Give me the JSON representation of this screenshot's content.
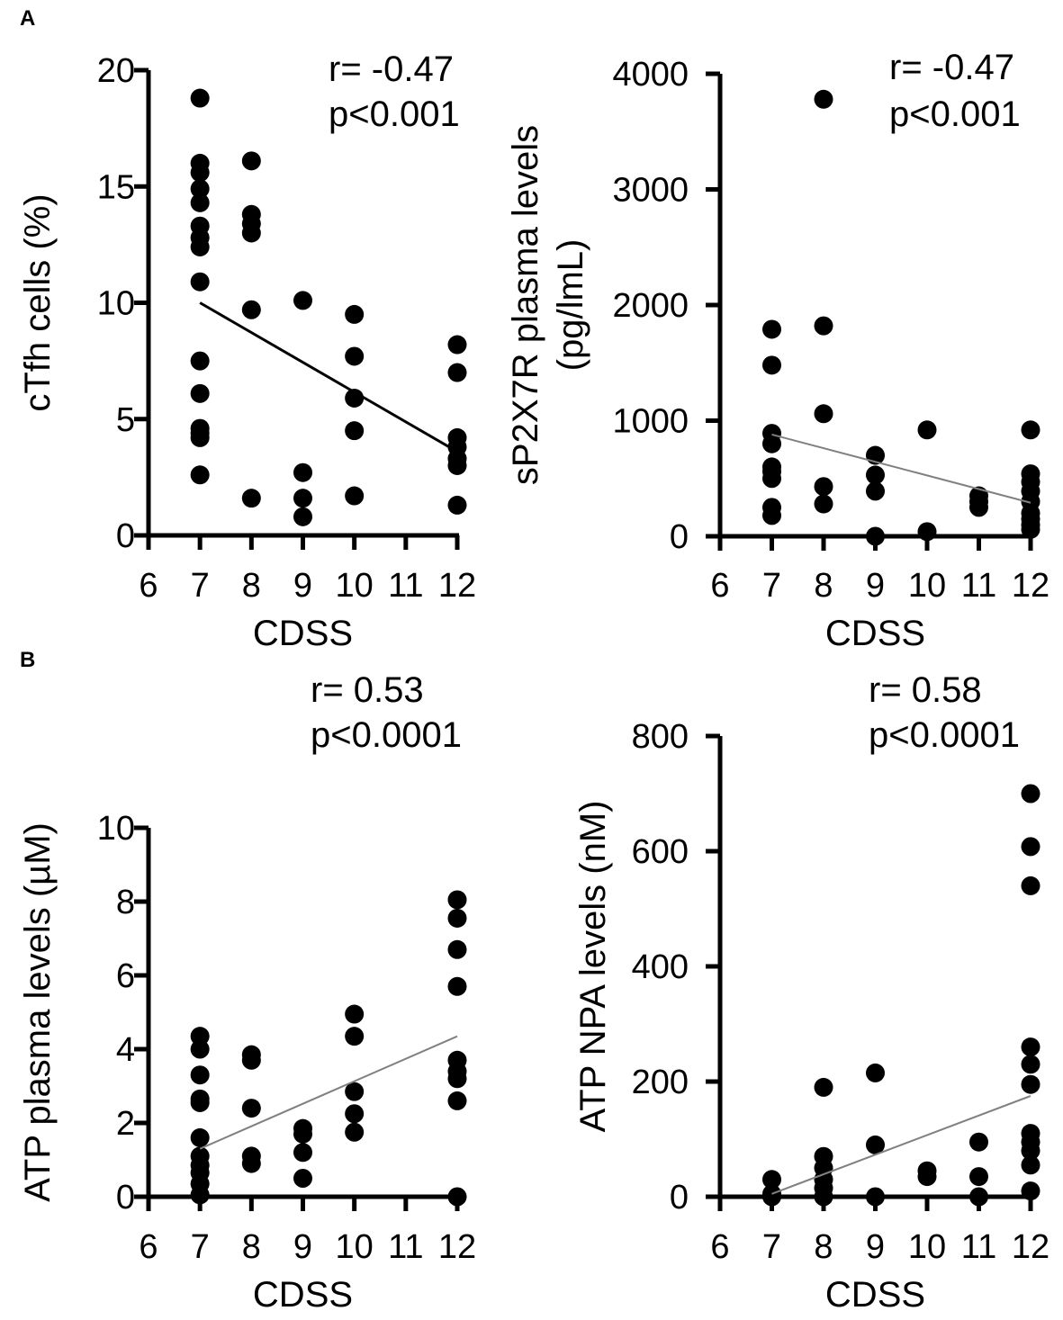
{
  "panel_labels": [
    "A",
    "B"
  ],
  "chart_data": [
    {
      "type": "scatter",
      "panel": "A",
      "xlabel": "CDSS",
      "ylabel": [
        "cTfh cells (%)"
      ],
      "xlim": [
        6,
        12
      ],
      "xticks": [
        6,
        7,
        8,
        9,
        10,
        11,
        12
      ],
      "ylim": [
        0,
        20
      ],
      "yticks": [
        0,
        5,
        10,
        15,
        20
      ],
      "annotation": [
        "r= -0.47",
        "p<0.001"
      ],
      "fit_line": {
        "x": [
          7,
          12
        ],
        "y": [
          10.0,
          3.6
        ],
        "color": "#000000"
      },
      "points": {
        "7": [
          18.8,
          16.0,
          15.6,
          14.9,
          14.3,
          13.3,
          12.8,
          12.4,
          10.9,
          7.5,
          6.1,
          4.6,
          4.4,
          4.2,
          2.6
        ],
        "8": [
          16.1,
          13.8,
          13.4,
          13.0,
          9.7,
          1.6
        ],
        "9": [
          10.1,
          2.7,
          1.6,
          0.8
        ],
        "10": [
          9.5,
          7.7,
          5.9,
          4.5,
          1.7
        ],
        "12": [
          8.2,
          7.0,
          4.2,
          3.8,
          3.3,
          3.0,
          1.3
        ]
      }
    },
    {
      "type": "scatter",
      "panel": "A",
      "xlabel": "CDSS",
      "ylabel": [
        "sP2X7R plasma levels",
        "(pg/lmL)"
      ],
      "xlim": [
        6,
        12
      ],
      "xticks": [
        6,
        7,
        8,
        9,
        10,
        11,
        12
      ],
      "ylim": [
        0,
        4000
      ],
      "yticks": [
        0,
        1000,
        2000,
        3000,
        4000
      ],
      "annotation": [
        "r= -0.47",
        "p<0.001"
      ],
      "fit_line": {
        "x": [
          7,
          12
        ],
        "y": [
          880,
          290
        ],
        "color": "#808080"
      },
      "points": {
        "7": [
          1790,
          1480,
          890,
          800,
          600,
          560,
          500,
          250,
          180
        ],
        "8": [
          3780,
          1820,
          1060,
          430,
          280
        ],
        "9": [
          700,
          530,
          390,
          0
        ],
        "10": [
          920,
          40
        ],
        "11": [
          350,
          300,
          250
        ],
        "12": [
          920,
          540,
          470,
          390,
          300,
          200,
          150,
          100,
          60
        ]
      }
    },
    {
      "type": "scatter",
      "panel": "B",
      "xlabel": "CDSS",
      "ylabel": [
        "ATP plasma  levels (µM)"
      ],
      "xlim": [
        6,
        12
      ],
      "xticks": [
        6,
        7,
        8,
        9,
        10,
        11,
        12
      ],
      "ylim": [
        0,
        10
      ],
      "yticks": [
        0,
        2,
        4,
        6,
        8,
        10
      ],
      "annotation": [
        "r= 0.53",
        "p<0.0001"
      ],
      "fit_line": {
        "x": [
          7,
          12
        ],
        "y": [
          1.3,
          4.35
        ],
        "color": "#808080"
      },
      "points": {
        "7": [
          4.35,
          4.0,
          3.3,
          2.65,
          2.55,
          1.6,
          1.1,
          0.85,
          0.65,
          0.35,
          0.05
        ],
        "8": [
          3.85,
          3.7,
          2.4,
          1.1,
          0.9
        ],
        "9": [
          1.85,
          1.7,
          1.2,
          0.5
        ],
        "10": [
          4.95,
          4.35,
          2.85,
          2.25,
          1.75
        ],
        "12": [
          8.05,
          7.55,
          6.7,
          5.7,
          3.7,
          3.4,
          3.2,
          2.6,
          0
        ]
      }
    },
    {
      "type": "scatter",
      "panel": "B",
      "xlabel": "CDSS",
      "ylabel": [
        "ATP NPA  levels (nM)"
      ],
      "xlim": [
        6,
        12
      ],
      "xticks": [
        6,
        7,
        8,
        9,
        10,
        11,
        12
      ],
      "ylim": [
        0,
        800
      ],
      "yticks": [
        0,
        200,
        400,
        600,
        800
      ],
      "annotation": [
        "r= 0.58",
        "p<0.0001"
      ],
      "fit_line": {
        "x": [
          7,
          12
        ],
        "y": [
          5,
          175
        ],
        "color": "#808080"
      },
      "points": {
        "7": [
          30,
          5,
          0
        ],
        "8": [
          190,
          70,
          50,
          30,
          15,
          0
        ],
        "9": [
          215,
          90,
          0
        ],
        "10": [
          45,
          35
        ],
        "11": [
          95,
          35,
          0
        ],
        "12": [
          700,
          608,
          540,
          260,
          230,
          195,
          110,
          95,
          80,
          55,
          10
        ]
      }
    }
  ]
}
